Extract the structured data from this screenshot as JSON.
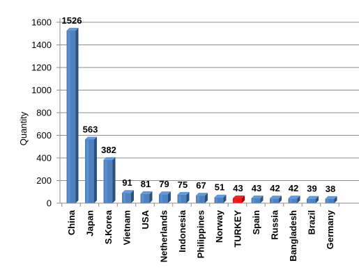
{
  "chart_data": {
    "type": "bar",
    "title": "",
    "xlabel": "",
    "ylabel": "Quantity",
    "ylim": [
      0,
      1600
    ],
    "yticks": [
      0,
      200,
      400,
      600,
      800,
      1000,
      1200,
      1400,
      1600
    ],
    "grid": "horizontal",
    "legend": "none",
    "bar_color": "#4F81BD",
    "highlight_color": "#E41A1C",
    "highlight_category": "TURKEY",
    "categories": [
      "China",
      "Japan",
      "S.Korea",
      "Vietnam",
      "USA",
      "Netherlands",
      "Indonesia",
      "Philippines",
      "Norway",
      "TURKEY",
      "Spain",
      "Russia",
      "Bangladesh",
      "Brazil",
      "Germany"
    ],
    "values": [
      1526,
      563,
      382,
      91,
      81,
      79,
      75,
      67,
      51,
      43,
      43,
      42,
      42,
      39,
      38
    ]
  }
}
